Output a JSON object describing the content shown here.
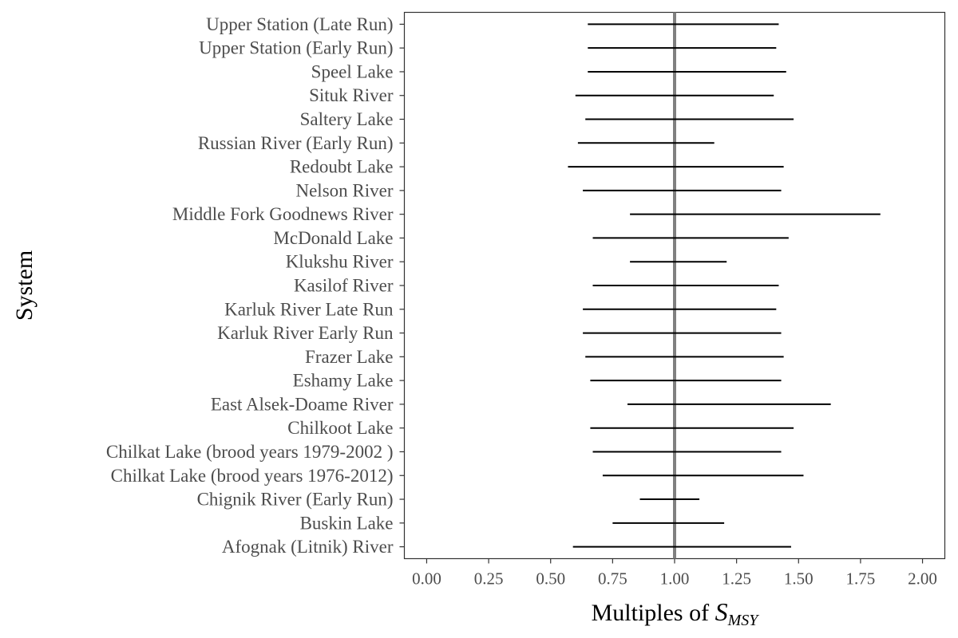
{
  "chart_data": {
    "type": "interval",
    "ylabel": "System",
    "xlabel": {
      "prefix": "Multiples of ",
      "symbol": "S",
      "subscript": "MSY"
    },
    "xlim": [
      -0.09,
      2.09
    ],
    "xticks": [
      0.0,
      0.25,
      0.5,
      0.75,
      1.0,
      1.25,
      1.5,
      1.75,
      2.0
    ],
    "xtick_labels": [
      "0.00",
      "0.25",
      "0.50",
      "0.75",
      "1.00",
      "1.25",
      "1.50",
      "1.75",
      "2.00"
    ],
    "reference_line": 1.0,
    "reference_color": "#808080",
    "line_color": "#000000",
    "grid": false,
    "systems": [
      {
        "name": "Upper Station (Late Run)",
        "lower": 0.65,
        "upper": 1.42
      },
      {
        "name": "Upper Station (Early Run)",
        "lower": 0.65,
        "upper": 1.41
      },
      {
        "name": "Speel Lake",
        "lower": 0.65,
        "upper": 1.45
      },
      {
        "name": "Situk River",
        "lower": 0.6,
        "upper": 1.4
      },
      {
        "name": "Saltery Lake",
        "lower": 0.64,
        "upper": 1.48
      },
      {
        "name": "Russian River (Early Run)",
        "lower": 0.61,
        "upper": 1.16
      },
      {
        "name": "Redoubt Lake",
        "lower": 0.57,
        "upper": 1.44
      },
      {
        "name": "Nelson River",
        "lower": 0.63,
        "upper": 1.43
      },
      {
        "name": "Middle Fork Goodnews River",
        "lower": 0.82,
        "upper": 1.83
      },
      {
        "name": "McDonald Lake",
        "lower": 0.67,
        "upper": 1.46
      },
      {
        "name": "Klukshu River",
        "lower": 0.82,
        "upper": 1.21
      },
      {
        "name": "Kasilof River",
        "lower": 0.67,
        "upper": 1.42
      },
      {
        "name": "Karluk River Late Run",
        "lower": 0.63,
        "upper": 1.41
      },
      {
        "name": "Karluk River Early Run",
        "lower": 0.63,
        "upper": 1.43
      },
      {
        "name": "Frazer Lake",
        "lower": 0.64,
        "upper": 1.44
      },
      {
        "name": "Eshamy Lake",
        "lower": 0.66,
        "upper": 1.43
      },
      {
        "name": "East Alsek-Doame River",
        "lower": 0.81,
        "upper": 1.63
      },
      {
        "name": "Chilkoot Lake",
        "lower": 0.66,
        "upper": 1.48
      },
      {
        "name": "Chilkat Lake (brood years 1979-2002 )",
        "lower": 0.67,
        "upper": 1.43
      },
      {
        "name": "Chilkat Lake (brood years 1976-2012)",
        "lower": 0.71,
        "upper": 1.52
      },
      {
        "name": "Chignik River (Early Run)",
        "lower": 0.86,
        "upper": 1.1
      },
      {
        "name": "Buskin Lake",
        "lower": 0.75,
        "upper": 1.2
      },
      {
        "name": "Afognak (Litnik) River",
        "lower": 0.59,
        "upper": 1.47
      }
    ]
  }
}
